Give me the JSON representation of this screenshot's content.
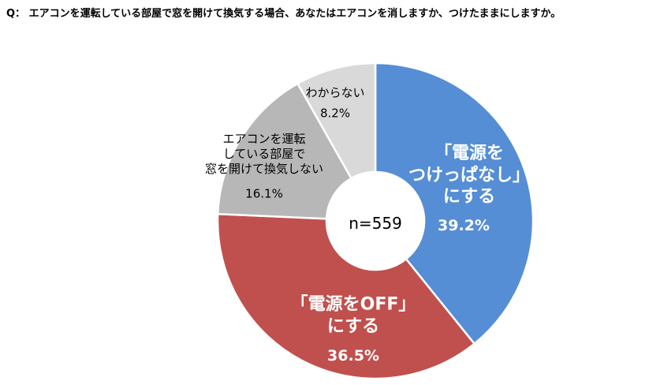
{
  "chart_data": {
    "type": "donut",
    "title": "Q： エアコンを運転している部屋で窓を開けて換気する場合、あなたはエアコンを消しますか、つけたままにしますか。",
    "center_label": "n=559",
    "categories": [
      "「電源を\nつけっぱなし」\nにする",
      "「電源をOFF」\nにする",
      "エアコンを運転\nしている部屋で\n窓を開けて換気しない",
      "わからない"
    ],
    "values": [
      39.2,
      36.5,
      16.1,
      8.2
    ],
    "value_labels": [
      "39.2%",
      "36.5%",
      "16.1%",
      "8.2%"
    ],
    "colors": [
      "#558ed5",
      "#c0504d",
      "#b7b7b7",
      "#d9d9d9"
    ]
  }
}
